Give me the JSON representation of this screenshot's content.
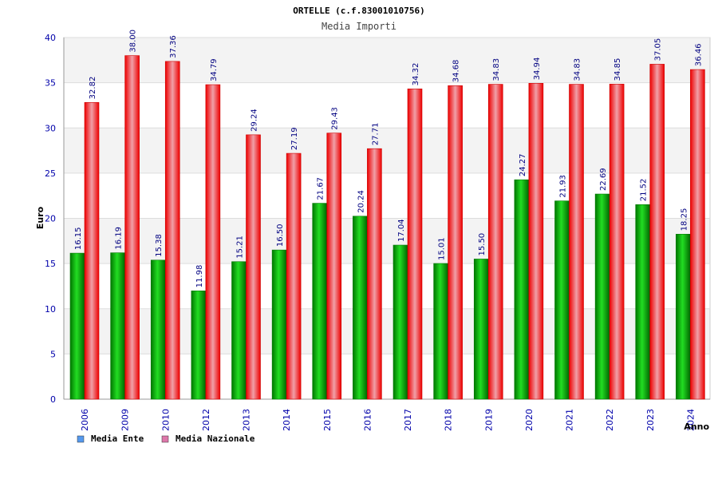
{
  "chart_data": {
    "type": "bar",
    "title": "ORTELLE (c.f.83001010756)",
    "subtitle": "Media Importi",
    "xlabel": "Anno",
    "ylabel": "Euro",
    "ylim": [
      0,
      40
    ],
    "yticks": [
      0,
      5,
      10,
      15,
      20,
      25,
      30,
      35,
      40
    ],
    "categories": [
      "2006",
      "2009",
      "2010",
      "2012",
      "2013",
      "2014",
      "2015",
      "2016",
      "2017",
      "2018",
      "2019",
      "2020",
      "2021",
      "2022",
      "2023",
      "2024"
    ],
    "series": [
      {
        "name": "Media Ente",
        "color": "#00aa00",
        "values": [
          16.15,
          16.19,
          15.38,
          11.98,
          15.21,
          16.5,
          21.67,
          20.24,
          17.04,
          15.01,
          15.5,
          24.27,
          21.93,
          22.69,
          21.52,
          18.25
        ],
        "labels": [
          "16.15",
          "16.19",
          "15.38",
          "11.98",
          "15.21",
          "16.50",
          "21.67",
          "20.24",
          "17.04",
          "15.01",
          "15.50",
          "24.27",
          "21.93",
          "22.69",
          "21.52",
          "18.25"
        ]
      },
      {
        "name": "Media Nazionale",
        "color": "#ee1111",
        "values": [
          32.82,
          38.0,
          37.36,
          34.79,
          29.24,
          27.19,
          29.43,
          27.71,
          34.32,
          34.68,
          34.83,
          34.94,
          34.83,
          34.85,
          37.05,
          36.46
        ],
        "labels": [
          "32.82",
          "38.00",
          "37.36",
          "34.79",
          "29.24",
          "27.19",
          "29.43",
          "27.71",
          "34.32",
          "34.68",
          "34.83",
          "34.94",
          "34.83",
          "34.85",
          "37.05",
          "36.46"
        ]
      }
    ],
    "legend": [
      {
        "name": "Media Ente",
        "swatch": "#5599ee"
      },
      {
        "name": "Media Nazionale",
        "swatch": "#dd77aa"
      }
    ],
    "grid": true
  }
}
